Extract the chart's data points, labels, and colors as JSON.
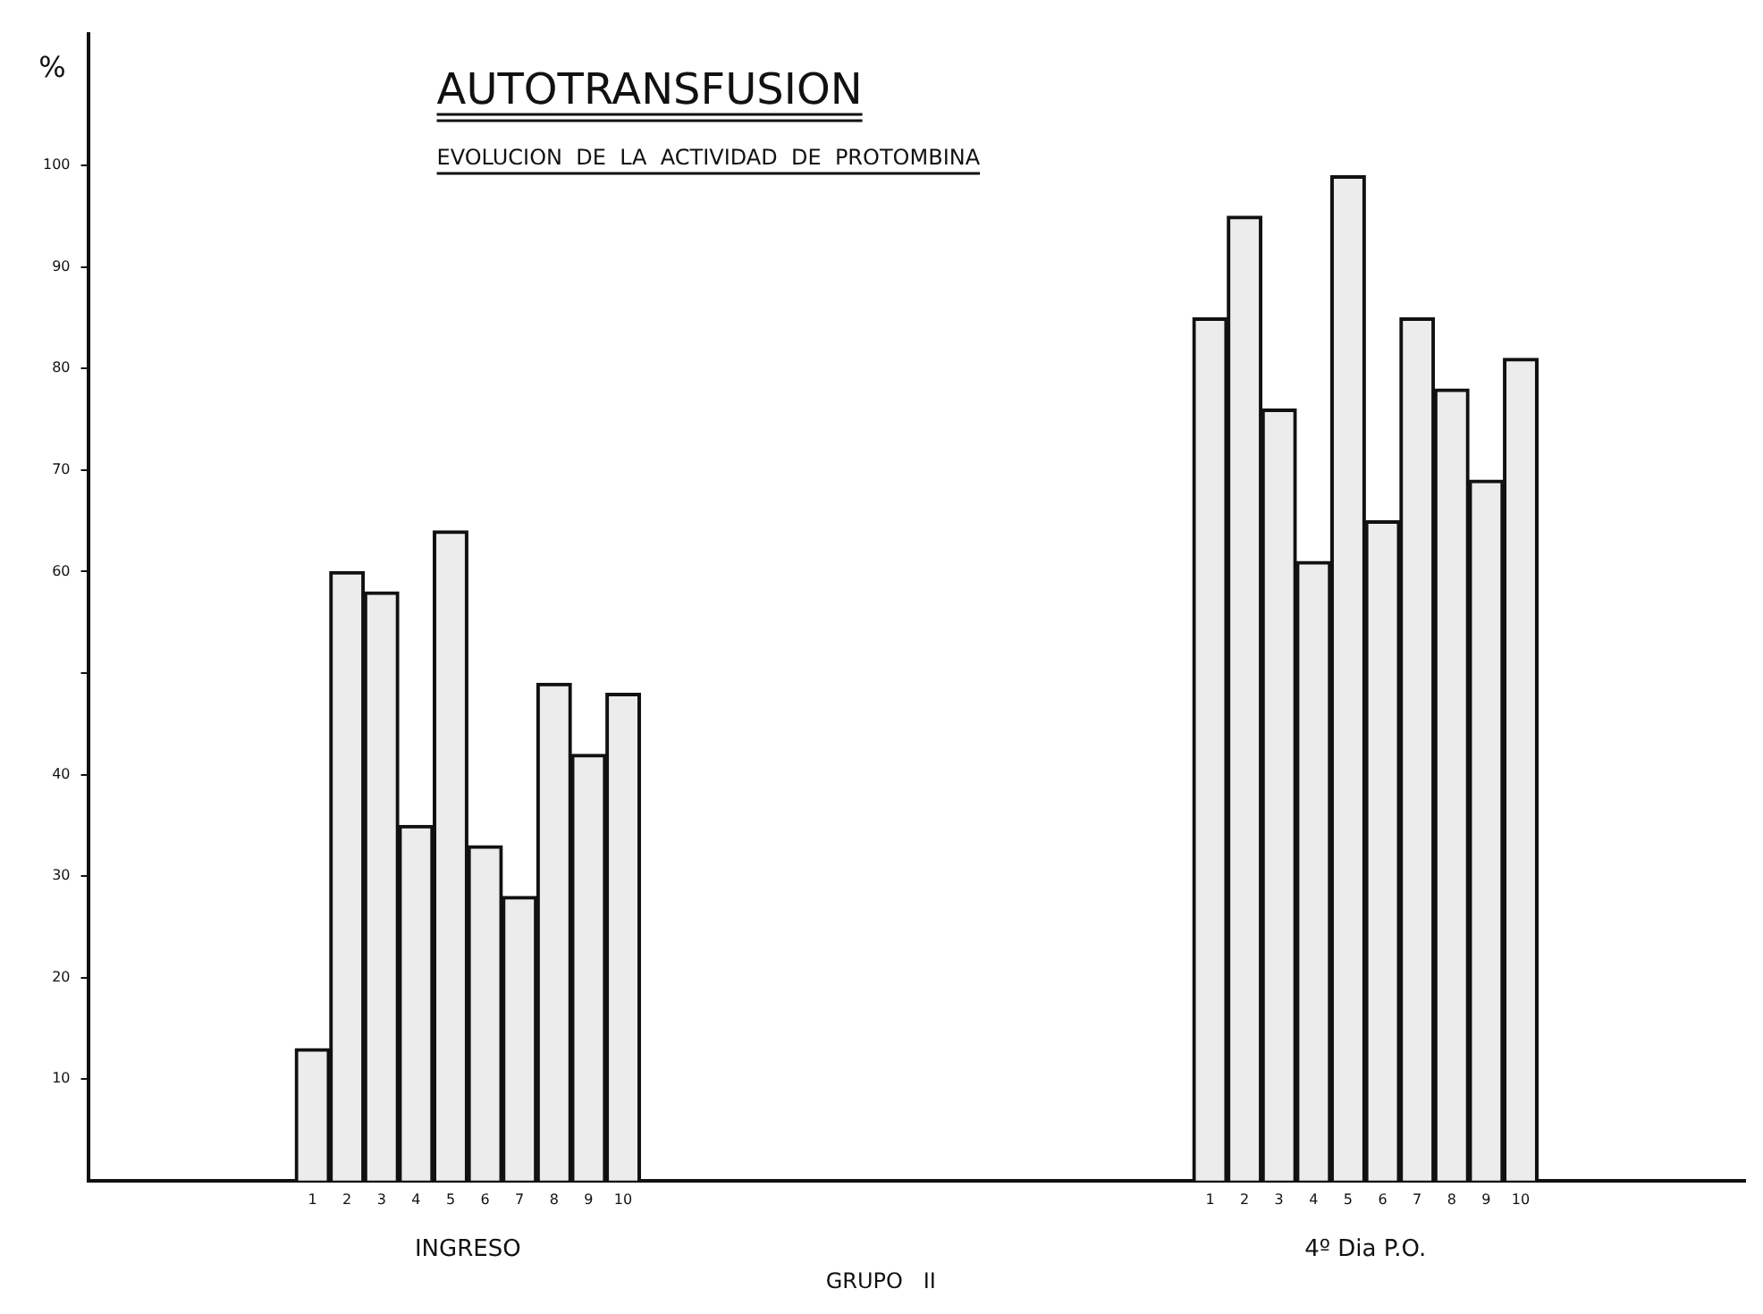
{
  "chart_data": {
    "type": "bar",
    "title": "AUTOTRANSFUSION",
    "subtitle": "EVOLUCION DE LA ACTIVIDAD DE PROTOMBINA",
    "ylabel": "%",
    "xlabel": "GRUPO II",
    "annotations": [
      "INGRESO",
      "4º Dia P.O."
    ],
    "categories": [
      null,
      null,
      null,
      null,
      null,
      null,
      "1",
      "2",
      "3",
      "4",
      "5",
      "6",
      "7",
      "8",
      "9",
      "10",
      null,
      null,
      null,
      null,
      null,
      null,
      null,
      null,
      null,
      null,
      null,
      null,
      null,
      null,
      null,
      null,
      "1",
      "2",
      "3",
      "4",
      "5",
      "6",
      "7",
      "8",
      "9",
      "10",
      null,
      null,
      null,
      null,
      null,
      null
    ],
    "values": [
      null,
      null,
      null,
      null,
      null,
      null,
      13,
      60,
      58,
      35,
      64,
      33,
      28,
      49,
      42,
      48,
      null,
      null,
      null,
      null,
      null,
      null,
      null,
      null,
      null,
      null,
      null,
      null,
      null,
      null,
      null,
      null,
      85,
      95,
      76,
      61,
      99,
      65,
      85,
      78,
      69,
      81,
      null,
      null,
      null,
      null,
      null,
      null
    ],
    "color": "#ececec",
    "ylim": [
      0,
      113
    ],
    "yticks": [
      10,
      20,
      30,
      40,
      {
        "value": 50,
        "label": null
      },
      60,
      70,
      80,
      90,
      100
    ],
    "grid": false,
    "legend": false
  }
}
